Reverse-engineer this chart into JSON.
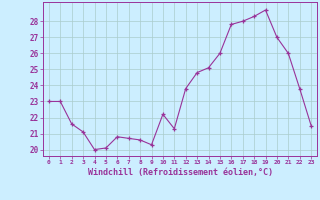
{
  "x": [
    0,
    1,
    2,
    3,
    4,
    5,
    6,
    7,
    8,
    9,
    10,
    11,
    12,
    13,
    14,
    15,
    16,
    17,
    18,
    19,
    20,
    21,
    22,
    23
  ],
  "y": [
    23,
    23,
    21.6,
    21.1,
    20.0,
    20.1,
    20.8,
    20.7,
    20.6,
    20.3,
    22.2,
    21.3,
    23.8,
    24.8,
    25.1,
    26.0,
    27.8,
    28.0,
    28.3,
    28.7,
    27.0,
    26.0,
    23.8,
    21.5
  ],
  "line_color": "#993399",
  "marker_color": "#993399",
  "bg_color": "#cceeff",
  "grid_color": "#aacccc",
  "xlabel": "Windchill (Refroidissement éolien,°C)",
  "ylim": [
    19.6,
    29.2
  ],
  "xlim": [
    -0.5,
    23.5
  ],
  "yticks": [
    20,
    21,
    22,
    23,
    24,
    25,
    26,
    27,
    28
  ],
  "xtick_labels": [
    "0",
    "1",
    "2",
    "3",
    "4",
    "5",
    "6",
    "7",
    "8",
    "9",
    "10",
    "11",
    "12",
    "13",
    "14",
    "15",
    "16",
    "17",
    "18",
    "19",
    "20",
    "21",
    "22",
    "23"
  ],
  "tick_color": "#993399",
  "label_color": "#993399"
}
